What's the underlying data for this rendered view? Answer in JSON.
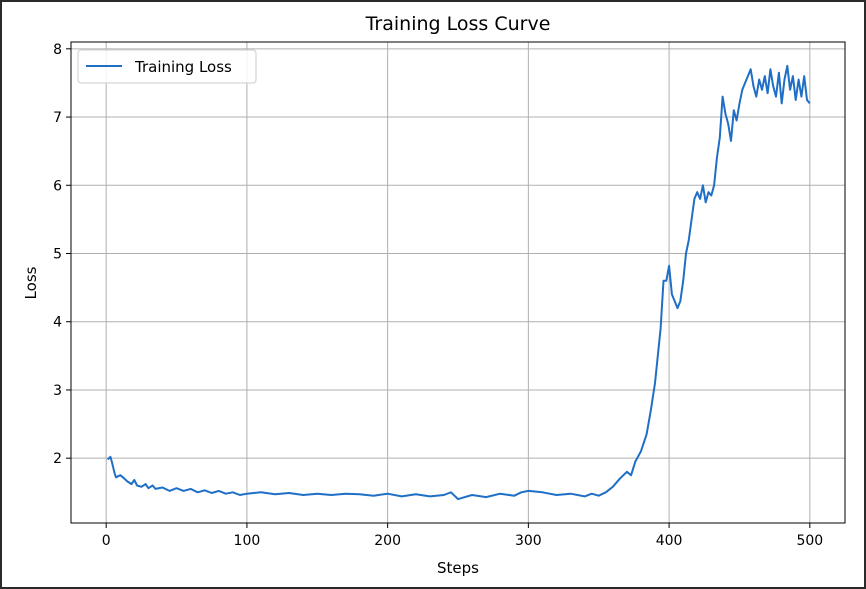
{
  "chart_data": {
    "type": "line",
    "title": "Training Loss Curve",
    "xlabel": "Steps",
    "ylabel": "Loss",
    "xlim": [
      -25,
      525
    ],
    "ylim": [
      1.05,
      8.1
    ],
    "xticks": [
      0,
      100,
      200,
      300,
      400,
      500
    ],
    "yticks": [
      2,
      3,
      4,
      5,
      6,
      7,
      8
    ],
    "grid": true,
    "legend": {
      "position": "upper-left",
      "entries": [
        "Training Loss"
      ]
    },
    "colors": {
      "series": "#1f6fc6"
    },
    "series": [
      {
        "name": "Training Loss",
        "x": [
          1,
          3,
          4,
          6,
          7,
          10,
          13,
          15,
          18,
          20,
          22,
          25,
          28,
          30,
          33,
          35,
          40,
          45,
          50,
          55,
          60,
          65,
          70,
          75,
          80,
          85,
          90,
          95,
          100,
          110,
          120,
          130,
          140,
          150,
          160,
          170,
          180,
          190,
          200,
          210,
          220,
          230,
          240,
          245,
          250,
          260,
          270,
          280,
          290,
          295,
          300,
          310,
          320,
          330,
          340,
          345,
          350,
          355,
          360,
          365,
          370,
          373,
          376,
          380,
          384,
          387,
          390,
          392,
          394,
          396,
          398,
          400,
          402,
          404,
          406,
          408,
          410,
          412,
          414,
          416,
          418,
          420,
          422,
          424,
          426,
          428,
          430,
          432,
          434,
          436,
          438,
          440,
          442,
          444,
          446,
          448,
          450,
          452,
          454,
          456,
          458,
          460,
          462,
          464,
          466,
          468,
          470,
          472,
          474,
          476,
          478,
          480,
          482,
          484,
          486,
          488,
          490,
          492,
          494,
          496,
          498,
          500
        ],
        "y": [
          1.98,
          2.02,
          1.95,
          1.78,
          1.72,
          1.75,
          1.7,
          1.66,
          1.62,
          1.68,
          1.6,
          1.58,
          1.62,
          1.56,
          1.6,
          1.55,
          1.57,
          1.52,
          1.56,
          1.52,
          1.55,
          1.5,
          1.53,
          1.49,
          1.52,
          1.48,
          1.5,
          1.46,
          1.48,
          1.5,
          1.47,
          1.49,
          1.46,
          1.48,
          1.46,
          1.48,
          1.47,
          1.45,
          1.48,
          1.44,
          1.47,
          1.44,
          1.46,
          1.5,
          1.4,
          1.46,
          1.43,
          1.48,
          1.45,
          1.5,
          1.52,
          1.5,
          1.46,
          1.48,
          1.44,
          1.48,
          1.45,
          1.5,
          1.58,
          1.7,
          1.8,
          1.75,
          1.95,
          2.1,
          2.35,
          2.7,
          3.1,
          3.5,
          3.9,
          4.6,
          4.6,
          4.82,
          4.4,
          4.3,
          4.2,
          4.3,
          4.6,
          5.0,
          5.2,
          5.5,
          5.8,
          5.9,
          5.8,
          6.0,
          5.75,
          5.9,
          5.85,
          6.0,
          6.4,
          6.7,
          7.3,
          7.05,
          6.9,
          6.65,
          7.1,
          6.95,
          7.2,
          7.4,
          7.5,
          7.6,
          7.7,
          7.45,
          7.3,
          7.55,
          7.4,
          7.6,
          7.35,
          7.7,
          7.45,
          7.3,
          7.65,
          7.2,
          7.55,
          7.75,
          7.4,
          7.6,
          7.25,
          7.55,
          7.3,
          7.6,
          7.25,
          7.2
        ]
      }
    ]
  }
}
